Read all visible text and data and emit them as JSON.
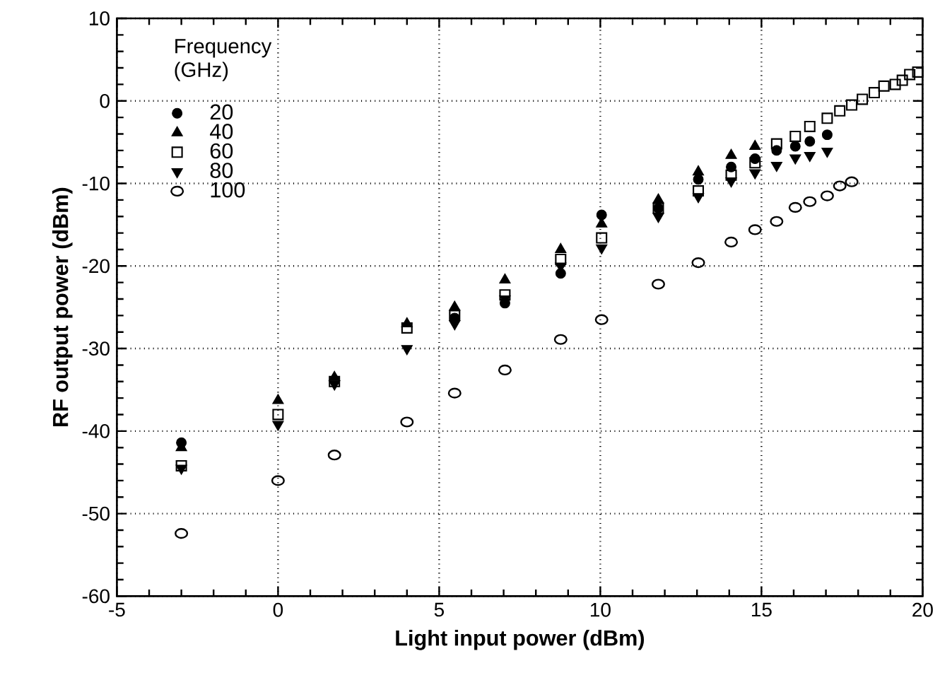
{
  "chart_data": {
    "type": "scatter",
    "xlabel": "Light input power (dBm)",
    "ylabel": "RF output power (dBm)",
    "legend_title": "Frequency (GHz)",
    "xlim": [
      -5,
      20
    ],
    "ylim": [
      -60,
      10
    ],
    "xticks": [
      -5,
      0,
      5,
      10,
      15,
      20
    ],
    "yticks": [
      -60,
      -50,
      -40,
      -30,
      -20,
      -10,
      0,
      10
    ],
    "grid": true,
    "legend": "top left",
    "series": [
      {
        "name": "20",
        "color": "#000000",
        "marker": "circle",
        "x": [
          -3,
          0,
          1.75,
          4,
          5.48,
          7.04,
          8.77,
          10.04,
          11.8,
          13.04,
          14.06,
          14.8,
          15.47,
          16.05,
          16.5,
          17.04
        ],
        "values": [
          -41.4,
          null,
          null,
          null,
          -26.3,
          -24.5,
          -20.9,
          -13.8,
          -13,
          -9.5,
          -8,
          -7,
          -6,
          -5.5,
          -4.9,
          -4.1
        ]
      },
      {
        "name": "40",
        "color": "#000000",
        "marker": "triangle",
        "x": [
          -3,
          0,
          1.75,
          4,
          5.48,
          7.04,
          8.77,
          10.04,
          11.8,
          13.04,
          14.06,
          14.8
        ],
        "values": [
          -42,
          -36.3,
          -33.5,
          -27,
          -25,
          -21.7,
          -18,
          -14.9,
          -12,
          -8.6,
          -6.6,
          -5.5
        ]
      },
      {
        "name": "60",
        "color": "#000000",
        "marker": "square-open",
        "x": [
          -3,
          0,
          1.75,
          4,
          5.48,
          7.04,
          8.77,
          10.04,
          11.8,
          13.04,
          14.06,
          14.8,
          15.47,
          16.05,
          16.5,
          17.04,
          17.43,
          17.8,
          18.13,
          18.5,
          18.8,
          19.15,
          19.37,
          19.6,
          19.85
        ],
        "values": [
          -44.2,
          -38,
          -34,
          -27.5,
          -26,
          -23.5,
          -19.2,
          -16.6,
          -13,
          -10.9,
          -9,
          -7.5,
          -5.2,
          -4.3,
          -3.1,
          -2.1,
          -1.2,
          -0.5,
          0.2,
          1,
          1.8,
          2,
          2.5,
          3.2,
          3.5
        ]
      },
      {
        "name": "80",
        "color": "#000000",
        "marker": "triangle-down",
        "x": [
          -3,
          0,
          1.75,
          4,
          5.48,
          7.04,
          8.77,
          10.04,
          11.8,
          13.04,
          14.06,
          14.8,
          15.47,
          16.05,
          16.5,
          17.04
        ],
        "values": [
          -44.5,
          -39.2,
          -34.3,
          -30,
          -27,
          -24,
          -20,
          -17.8,
          -14,
          -11.6,
          -9.7,
          -8.7,
          -7.8,
          -6.9,
          -6.6,
          -6.1
        ]
      },
      {
        "name": "100",
        "color": "#000000",
        "marker": "circle-open",
        "x": [
          -3,
          0,
          1.75,
          4,
          5.48,
          7.04,
          8.77,
          10.04,
          11.8,
          13.04,
          14.06,
          14.8,
          15.47,
          16.05,
          16.5,
          17.04,
          17.43,
          17.8
        ],
        "values": [
          -52.4,
          -46,
          -42.9,
          -38.9,
          -35.4,
          -32.6,
          -28.9,
          -26.5,
          -22.2,
          -19.6,
          -17.1,
          -15.6,
          -14.6,
          -12.9,
          -12.2,
          -11.5,
          -10.3,
          -9.8
        ]
      }
    ]
  }
}
